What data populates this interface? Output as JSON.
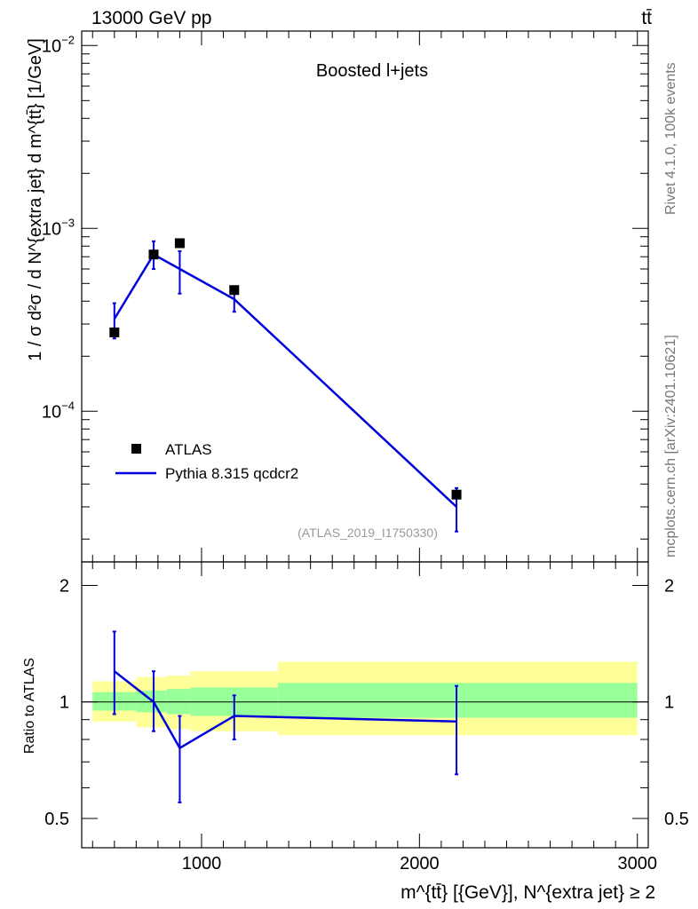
{
  "header": {
    "energy_label": "13000 GeV pp",
    "process_label": "tt̄"
  },
  "side": {
    "rivet_label": "Rivet 4.1.0,  100k events",
    "mcplots_label": "mcplots.cern.ch [arXiv:2401.10621]"
  },
  "chart_data": [
    {
      "type": "scatter",
      "panel": "main",
      "title": "Boosted l+jets",
      "reference": "(ATLAS_2019_I1750330)",
      "ylabel": "1 / σ d²σ / d N^{extra jet} d m^{tt̄} [1/GeV]",
      "yscale": "log",
      "ylim": [
        1.5e-05,
        0.012
      ],
      "xlim": [
        450,
        3050
      ],
      "y_tick_labels": [
        {
          "value": 0.0001,
          "base": "10",
          "exp": "−4"
        },
        {
          "value": 0.001,
          "base": "10",
          "exp": "−3"
        },
        {
          "value": 0.01,
          "base": "10",
          "exp": "−2"
        }
      ],
      "legend": [
        {
          "name": "ATLAS",
          "marker": "square",
          "color": "#000000"
        },
        {
          "name": "Pythia 8.315 qcdcr2",
          "marker": "line",
          "color": "#0000dd"
        }
      ],
      "series": [
        {
          "name": "ATLAS",
          "x": [
            600,
            780,
            900,
            1150,
            2170
          ],
          "y": [
            0.00027,
            0.00072,
            0.00083,
            0.00046,
            3.5e-05
          ],
          "yerr_low": [
            1.5e-05,
            4e-05,
            4e-05,
            2e-05,
            2e-06
          ],
          "yerr_high": [
            1.5e-05,
            4e-05,
            4e-05,
            2e-05,
            2e-06
          ]
        },
        {
          "name": "Pythia 8.315 qcdcr2",
          "x": [
            600,
            780,
            900,
            1150,
            2170
          ],
          "y": [
            0.00032,
            0.00072,
            0.0006,
            0.00041,
            3e-05
          ],
          "y_low": [
            0.00025,
            0.0006,
            0.00044,
            0.00035,
            2.2e-05
          ],
          "y_high": [
            0.00039,
            0.00085,
            0.00075,
            0.00047,
            3.8e-05
          ]
        }
      ]
    },
    {
      "type": "line",
      "panel": "ratio",
      "ylabel": "Ratio to ATLAS",
      "xlabel": "m^{tt̄} [{GeV}], N^{extra jet} ≥ 2",
      "xlim": [
        450,
        3050
      ],
      "ylim": [
        0.42,
        2.3
      ],
      "yscale": "log",
      "x_ticks": [
        1000,
        2000,
        3000
      ],
      "y_ticks": [
        0.5,
        1,
        2
      ],
      "bins": [
        {
          "lo": 500,
          "hi": 700,
          "stat": [
            0.95,
            1.06
          ],
          "total": [
            0.89,
            1.13
          ]
        },
        {
          "lo": 700,
          "hi": 840,
          "stat": [
            0.94,
            1.07
          ],
          "total": [
            0.86,
            1.16
          ]
        },
        {
          "lo": 840,
          "hi": 950,
          "stat": [
            0.93,
            1.08
          ],
          "total": [
            0.85,
            1.17
          ]
        },
        {
          "lo": 950,
          "hi": 1350,
          "stat": [
            0.92,
            1.09
          ],
          "total": [
            0.84,
            1.2
          ]
        },
        {
          "lo": 1350,
          "hi": 3000,
          "stat": [
            0.91,
            1.12
          ],
          "total": [
            0.82,
            1.27
          ]
        }
      ],
      "series": [
        {
          "name": "Pythia 8.315 qcdcr2 / ATLAS",
          "x": [
            600,
            780,
            900,
            1150,
            2170
          ],
          "y": [
            1.2,
            1.0,
            0.76,
            0.92,
            0.89
          ],
          "y_low": [
            0.93,
            0.84,
            0.55,
            0.8,
            0.65
          ],
          "y_high": [
            1.52,
            1.2,
            0.92,
            1.04,
            1.1
          ]
        }
      ]
    }
  ],
  "colors": {
    "mc": "#0000dd",
    "data": "#000000",
    "band_inner": "#99ff99",
    "band_outer": "#ffff99"
  }
}
